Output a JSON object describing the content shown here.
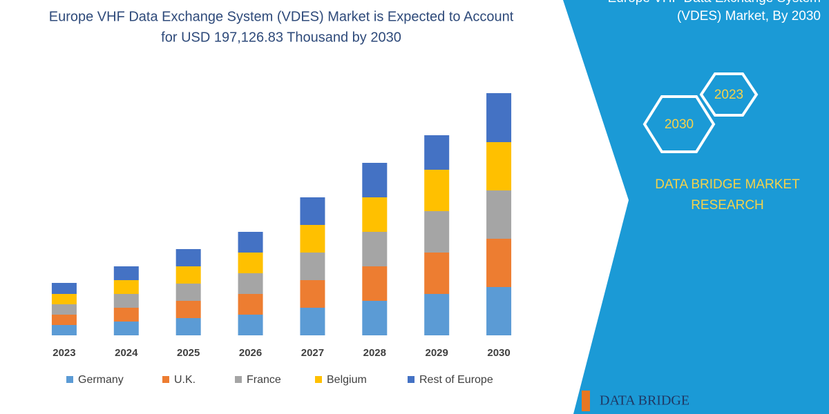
{
  "chart_data": {
    "type": "stacked_bar",
    "title": [
      "Europe VHF Data Exchange System (VDES) Market is Expected to Account",
      "for USD 197,126.83 Thousand by 2030"
    ],
    "categories": [
      "2023",
      "2024",
      "2025",
      "2026",
      "2027",
      "2028",
      "2029",
      "2030"
    ],
    "series": [
      {
        "name": "Germany",
        "color": "#5b9bd5",
        "values": [
          15,
          20,
          25,
          30,
          40,
          50,
          60,
          70
        ]
      },
      {
        "name": "U.K.",
        "color": "#ed7d31",
        "values": [
          15,
          20,
          25,
          30,
          40,
          50,
          60,
          70
        ]
      },
      {
        "name": "France",
        "color": "#a5a5a5",
        "values": [
          15,
          20,
          25,
          30,
          40,
          50,
          60,
          70
        ]
      },
      {
        "name": "Belgium",
        "color": "#ffc000",
        "values": [
          15,
          20,
          25,
          30,
          40,
          50,
          60,
          70
        ]
      },
      {
        "name": "Rest of Europe",
        "color": "#4472c4",
        "values": [
          16,
          20,
          25,
          30,
          40,
          50,
          50,
          71
        ]
      }
    ]
  },
  "panel": {
    "title": [
      "Europe VHF Data Exchange System",
      "(VDES) Market, By 2030"
    ],
    "hex_1": "2023",
    "hex_2": "2030",
    "brand": [
      "DATA BRIDGE MARKET",
      "RESEARCH"
    ],
    "logo": "DATA BRIDGE"
  }
}
